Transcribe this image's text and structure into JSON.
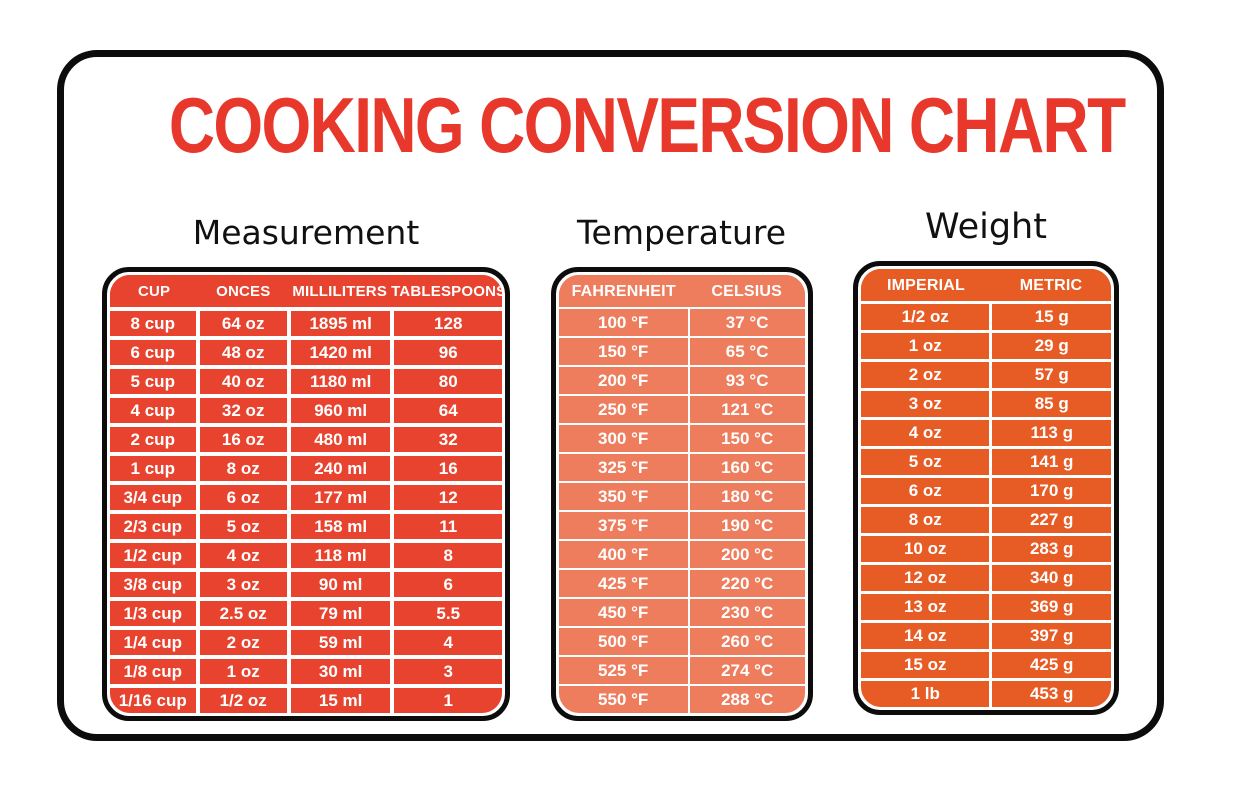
{
  "title": "COOKING CONVERSION CHART",
  "colors": {
    "background": "#FFFFFF",
    "card_border": "#0C0C0C",
    "title_red": "#E8382C",
    "heading_text": "#111111",
    "table_text": "#FFFFFF",
    "measurement_fill": "#E8432F",
    "temperature_fill": "#EE7D5E",
    "weight_fill": "#E75B24"
  },
  "sections": [
    {
      "id": "measurement",
      "heading": "Measurement",
      "fill_color": "#E8432F",
      "columns": [
        "CUP",
        "ONCES",
        "MILLILITERS",
        "TABLESPOONS"
      ],
      "rows": [
        [
          "8 cup",
          "64 oz",
          "1895 ml",
          "128"
        ],
        [
          "6 cup",
          "48 oz",
          "1420 ml",
          "96"
        ],
        [
          "5 cup",
          "40 oz",
          "1180 ml",
          "80"
        ],
        [
          "4 cup",
          "32 oz",
          "960 ml",
          "64"
        ],
        [
          "2 cup",
          "16 oz",
          "480 ml",
          "32"
        ],
        [
          "1 cup",
          "8 oz",
          "240 ml",
          "16"
        ],
        [
          "3/4 cup",
          "6 oz",
          "177 ml",
          "12"
        ],
        [
          "2/3 cup",
          "5 oz",
          "158 ml",
          "11"
        ],
        [
          "1/2 cup",
          "4 oz",
          "118 ml",
          "8"
        ],
        [
          "3/8 cup",
          "3 oz",
          "90 ml",
          "6"
        ],
        [
          "1/3 cup",
          "2.5 oz",
          "79 ml",
          "5.5"
        ],
        [
          "1/4 cup",
          "2 oz",
          "59 ml",
          "4"
        ],
        [
          "1/8 cup",
          "1 oz",
          "30 ml",
          "3"
        ],
        [
          "1/16 cup",
          "1/2 oz",
          "15 ml",
          "1"
        ]
      ]
    },
    {
      "id": "temperature",
      "heading": "Temperature",
      "fill_color": "#EE7D5E",
      "columns": [
        "FAHRENHEIT",
        "CELSIUS"
      ],
      "rows": [
        [
          "100 °F",
          "37 °C"
        ],
        [
          "150 °F",
          "65 °C"
        ],
        [
          "200 °F",
          "93 °C"
        ],
        [
          "250 °F",
          "121 °C"
        ],
        [
          "300 °F",
          "150 °C"
        ],
        [
          "325 °F",
          "160 °C"
        ],
        [
          "350 °F",
          "180 °C"
        ],
        [
          "375 °F",
          "190 °C"
        ],
        [
          "400 °F",
          "200 °C"
        ],
        [
          "425 °F",
          "220 °C"
        ],
        [
          "450 °F",
          "230 °C"
        ],
        [
          "500 °F",
          "260 °C"
        ],
        [
          "525 °F",
          "274 °C"
        ],
        [
          "550 °F",
          "288 °C"
        ]
      ]
    },
    {
      "id": "weight",
      "heading": "Weight",
      "fill_color": "#E75B24",
      "columns": [
        "IMPERIAL",
        "METRIC"
      ],
      "rows": [
        [
          "1/2 oz",
          "15 g"
        ],
        [
          "1 oz",
          "29 g"
        ],
        [
          "2 oz",
          "57 g"
        ],
        [
          "3 oz",
          "85 g"
        ],
        [
          "4 oz",
          "113 g"
        ],
        [
          "5 oz",
          "141 g"
        ],
        [
          "6 oz",
          "170 g"
        ],
        [
          "8 oz",
          "227 g"
        ],
        [
          "10 oz",
          "283 g"
        ],
        [
          "12 oz",
          "340 g"
        ],
        [
          "13 oz",
          "369 g"
        ],
        [
          "14 oz",
          "397 g"
        ],
        [
          "15 oz",
          "425 g"
        ],
        [
          "1 lb",
          "453 g"
        ]
      ]
    }
  ]
}
